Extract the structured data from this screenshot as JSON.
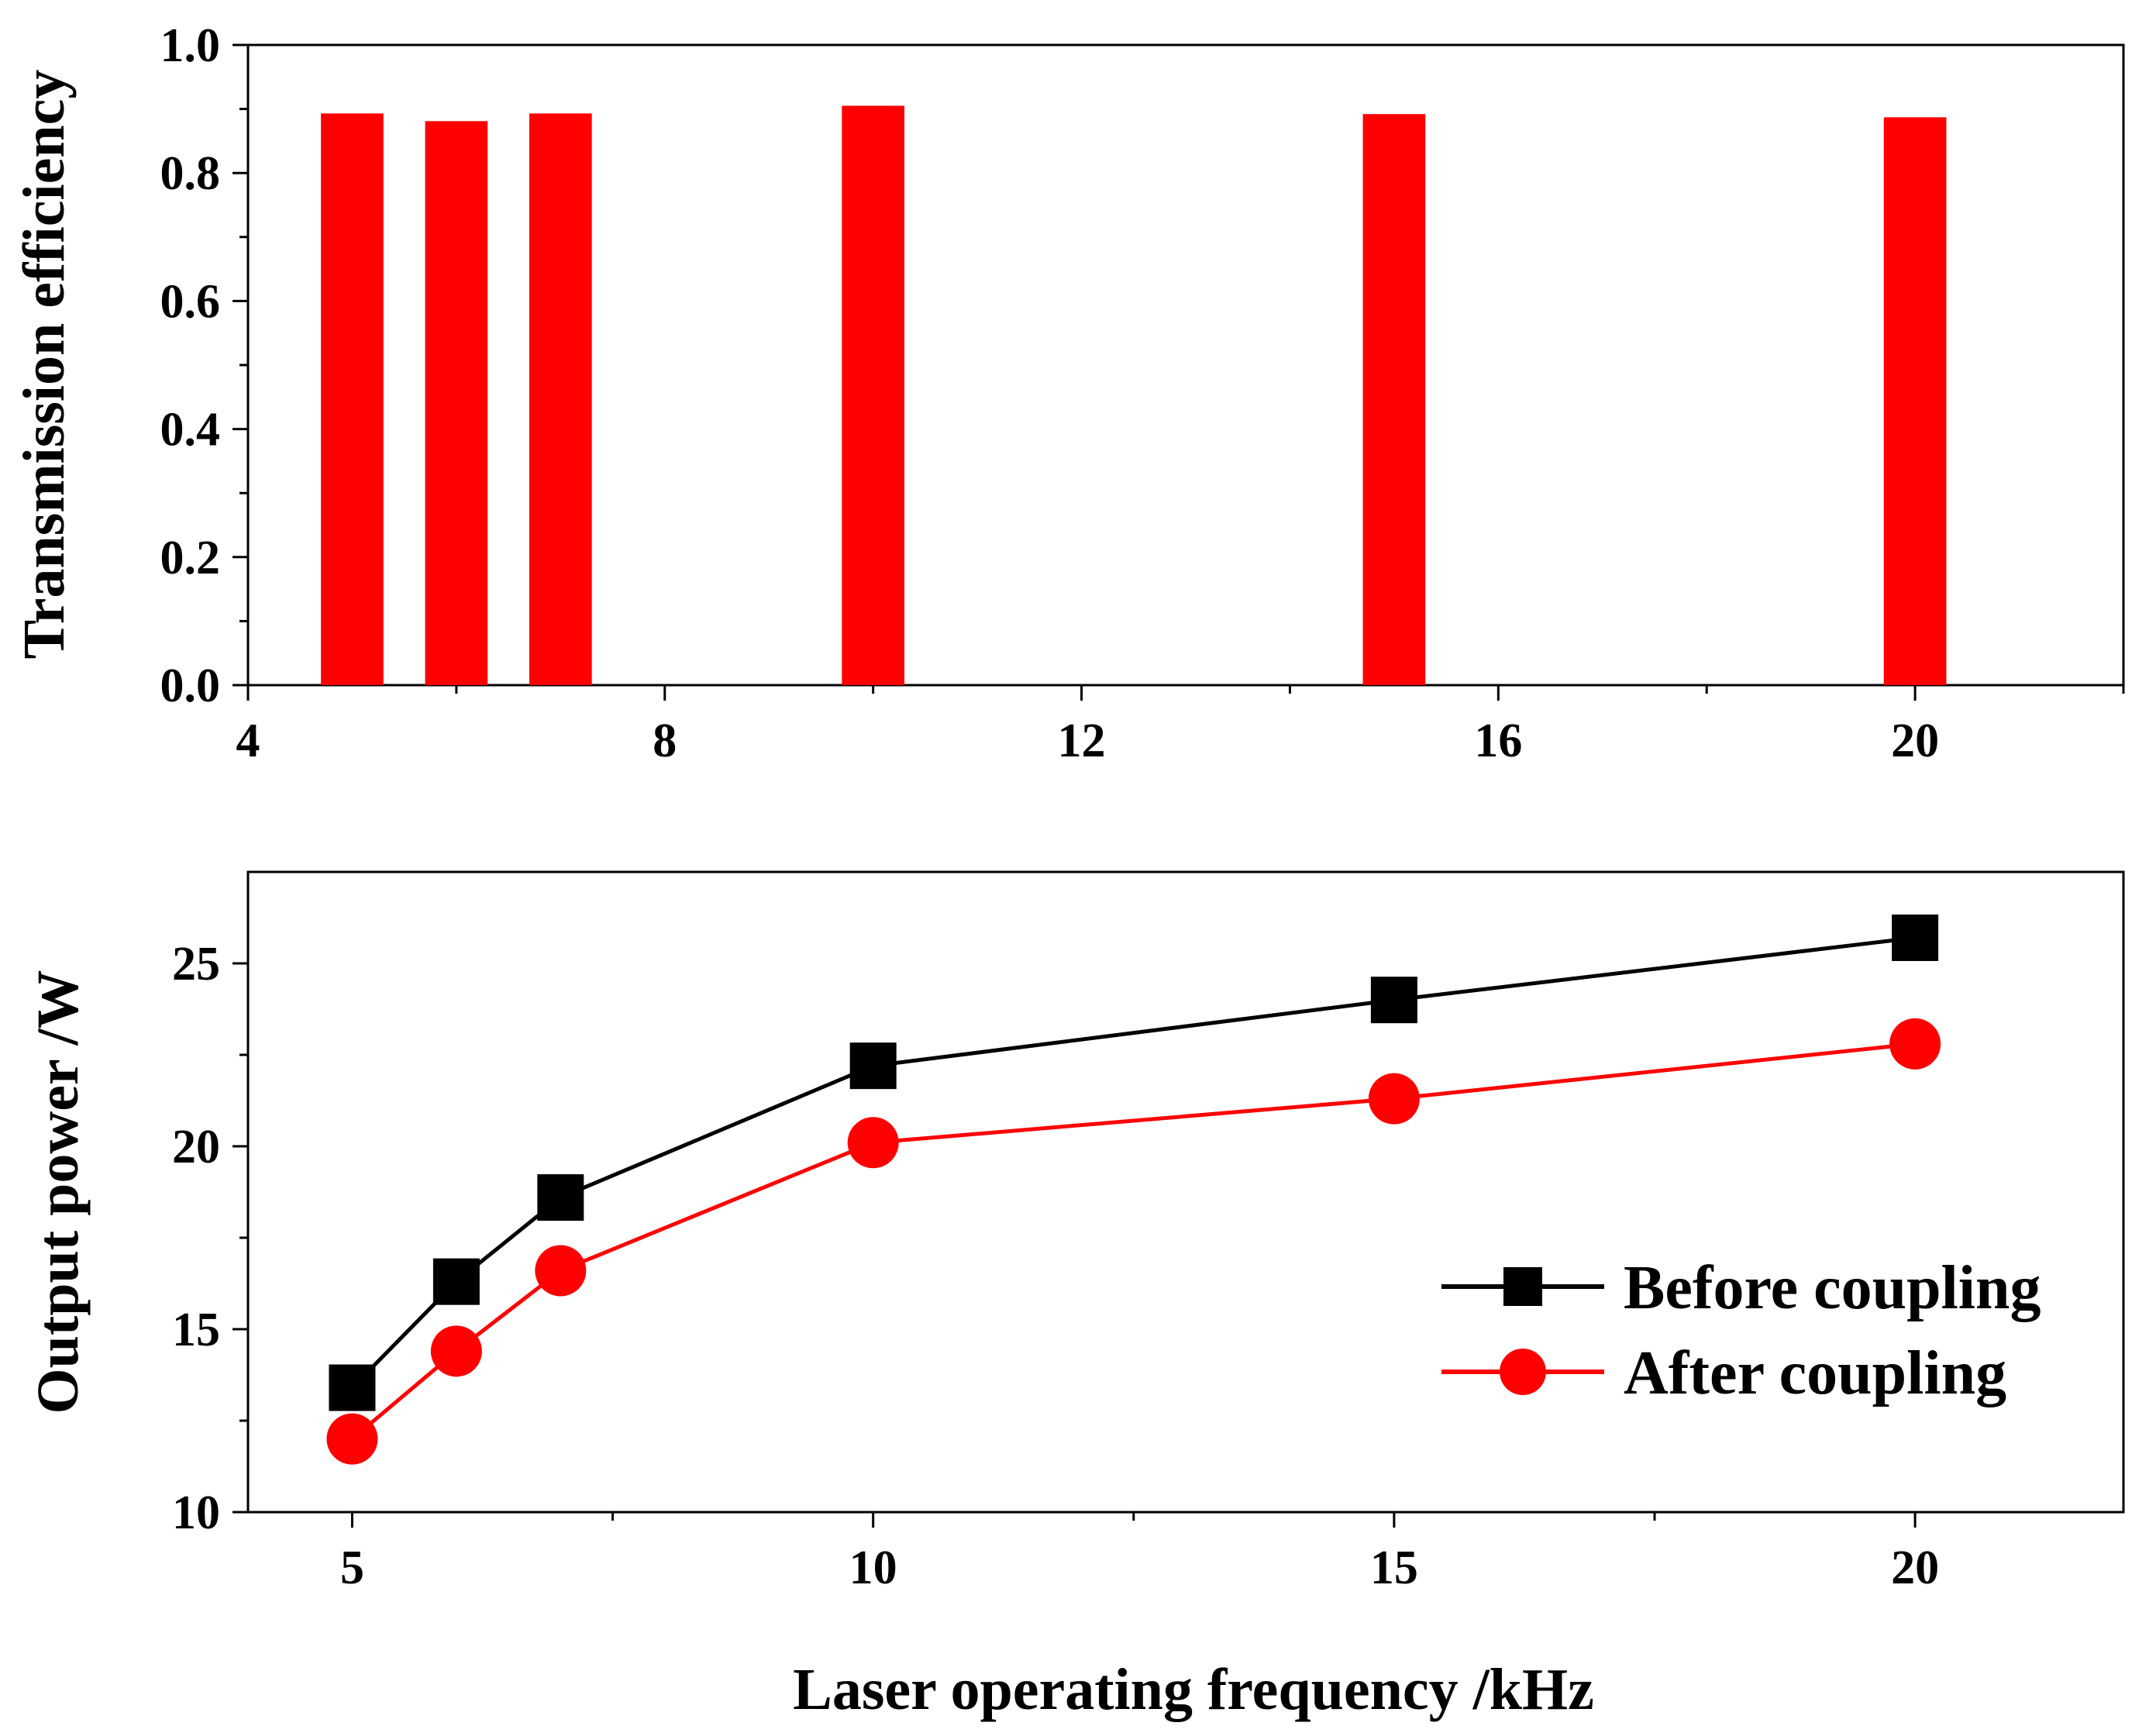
{
  "chart_data": [
    {
      "type": "bar",
      "panel": "top",
      "title": "",
      "xlabel": "",
      "ylabel": "Transmission efficiency",
      "x": [
        5,
        6,
        7,
        10,
        15,
        20
      ],
      "values": [
        0.893,
        0.881,
        0.893,
        0.905,
        0.892,
        0.887
      ],
      "xlim": [
        4,
        22
      ],
      "ylim": [
        0,
        1
      ],
      "xticks": [
        4,
        8,
        12,
        16,
        20
      ],
      "xtick_labels": [
        "4",
        "8",
        "12",
        "16",
        "20"
      ],
      "xminor_ticks": [
        6,
        10,
        14,
        18,
        22
      ],
      "yticks": [
        0,
        0.2,
        0.4,
        0.6,
        0.8,
        1.0
      ],
      "ytick_labels": [
        "0.0",
        "0.2",
        "0.4",
        "0.6",
        "0.8",
        "1.0"
      ],
      "yminor_ticks": [
        0.1,
        0.3,
        0.5,
        0.7,
        0.9
      ],
      "bar_width": 0.6,
      "color": "#ff0000",
      "grid": false
    },
    {
      "type": "line",
      "panel": "bottom",
      "title": "",
      "xlabel": "Laser operating frequency /kHz",
      "ylabel": "Output power /W",
      "x": [
        5,
        6,
        7,
        10,
        15,
        20
      ],
      "series": [
        {
          "name": "Before coupling",
          "values": [
            13.4,
            16.3,
            18.6,
            22.2,
            24.0,
            25.7
          ],
          "color": "#000000",
          "marker": "square"
        },
        {
          "name": "After coupling",
          "values": [
            12.0,
            14.4,
            16.6,
            20.1,
            21.3,
            22.8
          ],
          "color": "#ff0000",
          "marker": "circle"
        }
      ],
      "xlim": [
        4,
        22
      ],
      "ylim": [
        10,
        27.5
      ],
      "xticks": [
        5,
        10,
        15,
        20
      ],
      "xtick_labels": [
        "5",
        "10",
        "15",
        "20"
      ],
      "xminor_ticks": [
        7.5,
        12.5,
        17.5
      ],
      "yticks": [
        10,
        15,
        20,
        25
      ],
      "ytick_labels": [
        "10",
        "15",
        "20",
        "25"
      ],
      "yminor_ticks": [
        12.5,
        17.5,
        22.5
      ],
      "legend_position": "right",
      "grid": false
    }
  ]
}
